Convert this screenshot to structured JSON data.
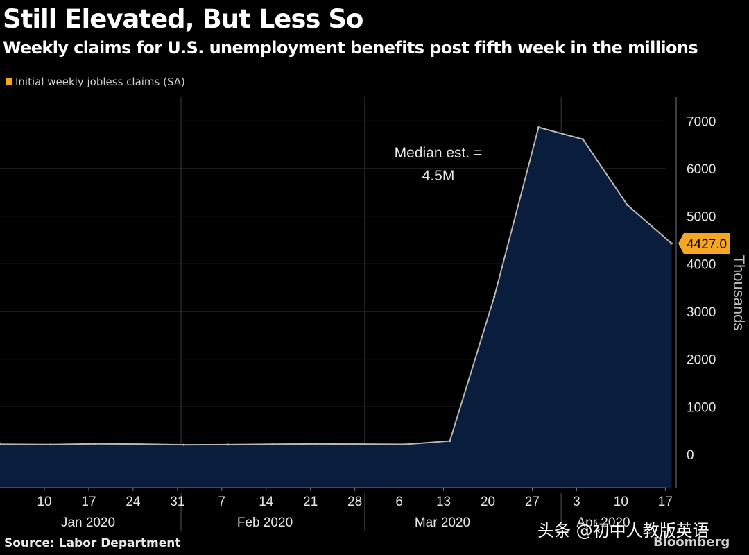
{
  "header": {
    "title": "Still Elevated, But Less So",
    "subtitle": "Weekly claims for U.S. unemployment benefits post fifth week in the millions"
  },
  "legend": {
    "label": "Initial weekly jobless claims (SA)",
    "color": "#f5a623"
  },
  "footer": {
    "source": "Source: Labor Department",
    "brand": "Bloomberg"
  },
  "watermark": "头条 @初中人教版英语",
  "chart_data": {
    "type": "area",
    "series": [
      {
        "name": "Initial weekly jobless claims (SA)",
        "x": [
          "2020-01-04",
          "2020-01-11",
          "2020-01-18",
          "2020-01-25",
          "2020-02-01",
          "2020-02-08",
          "2020-02-15",
          "2020-02-22",
          "2020-02-29",
          "2020-03-07",
          "2020-03-14",
          "2020-03-21",
          "2020-03-28",
          "2020-04-04",
          "2020-04-11",
          "2020-04-18"
        ],
        "values": [
          212,
          207,
          220,
          216,
          202,
          204,
          215,
          219,
          216,
          211,
          282,
          3307,
          6867,
          6615,
          5237,
          4427
        ]
      }
    ],
    "x_ticks": [
      "10",
      "17",
      "24",
      "31",
      "7",
      "14",
      "21",
      "28",
      "6",
      "13",
      "20",
      "27",
      "3",
      "10",
      "17"
    ],
    "month_labels": [
      "Jan 2020",
      "Feb 2020",
      "Mar 2020",
      "Apr 2020"
    ],
    "ylabel": "Thousands",
    "y_ticks": [
      0,
      1000,
      2000,
      3000,
      4000,
      5000,
      6000,
      7000
    ],
    "ylim": [
      -700,
      7500
    ],
    "last_value_label": "4427.0",
    "annotation": "Median est. =\n4.5M",
    "grid": true,
    "colors": {
      "fill": "#0b1d3d",
      "line": "#b8b8b8",
      "highlight": "#f5a623",
      "grid": "#3a3a3a"
    }
  }
}
